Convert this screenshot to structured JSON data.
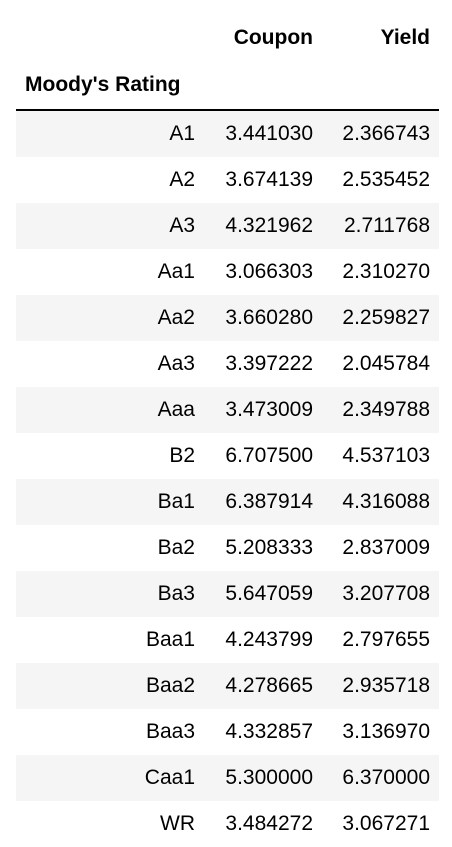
{
  "table": {
    "columns": [
      "Coupon",
      "Yield"
    ],
    "index_name": "Moody's Rating",
    "rows": [
      {
        "rating": "A1",
        "coupon": "3.441030",
        "yield": "2.366743"
      },
      {
        "rating": "A2",
        "coupon": "3.674139",
        "yield": "2.535452"
      },
      {
        "rating": "A3",
        "coupon": "4.321962",
        "yield": "2.711768"
      },
      {
        "rating": "Aa1",
        "coupon": "3.066303",
        "yield": "2.310270"
      },
      {
        "rating": "Aa2",
        "coupon": "3.660280",
        "yield": "2.259827"
      },
      {
        "rating": "Aa3",
        "coupon": "3.397222",
        "yield": "2.045784"
      },
      {
        "rating": "Aaa",
        "coupon": "3.473009",
        "yield": "2.349788"
      },
      {
        "rating": "B2",
        "coupon": "6.707500",
        "yield": "4.537103"
      },
      {
        "rating": "Ba1",
        "coupon": "6.387914",
        "yield": "4.316088"
      },
      {
        "rating": "Ba2",
        "coupon": "5.208333",
        "yield": "2.837009"
      },
      {
        "rating": "Ba3",
        "coupon": "5.647059",
        "yield": "3.207708"
      },
      {
        "rating": "Baa1",
        "coupon": "4.243799",
        "yield": "2.797655"
      },
      {
        "rating": "Baa2",
        "coupon": "4.278665",
        "yield": "2.935718"
      },
      {
        "rating": "Baa3",
        "coupon": "4.332857",
        "yield": "3.136970"
      },
      {
        "rating": "Caa1",
        "coupon": "5.300000",
        "yield": "6.370000"
      },
      {
        "rating": "WR",
        "coupon": "3.484272",
        "yield": "3.067271"
      }
    ]
  },
  "colors": {
    "stripe": "#f5f5f5",
    "rule": "#000000"
  }
}
